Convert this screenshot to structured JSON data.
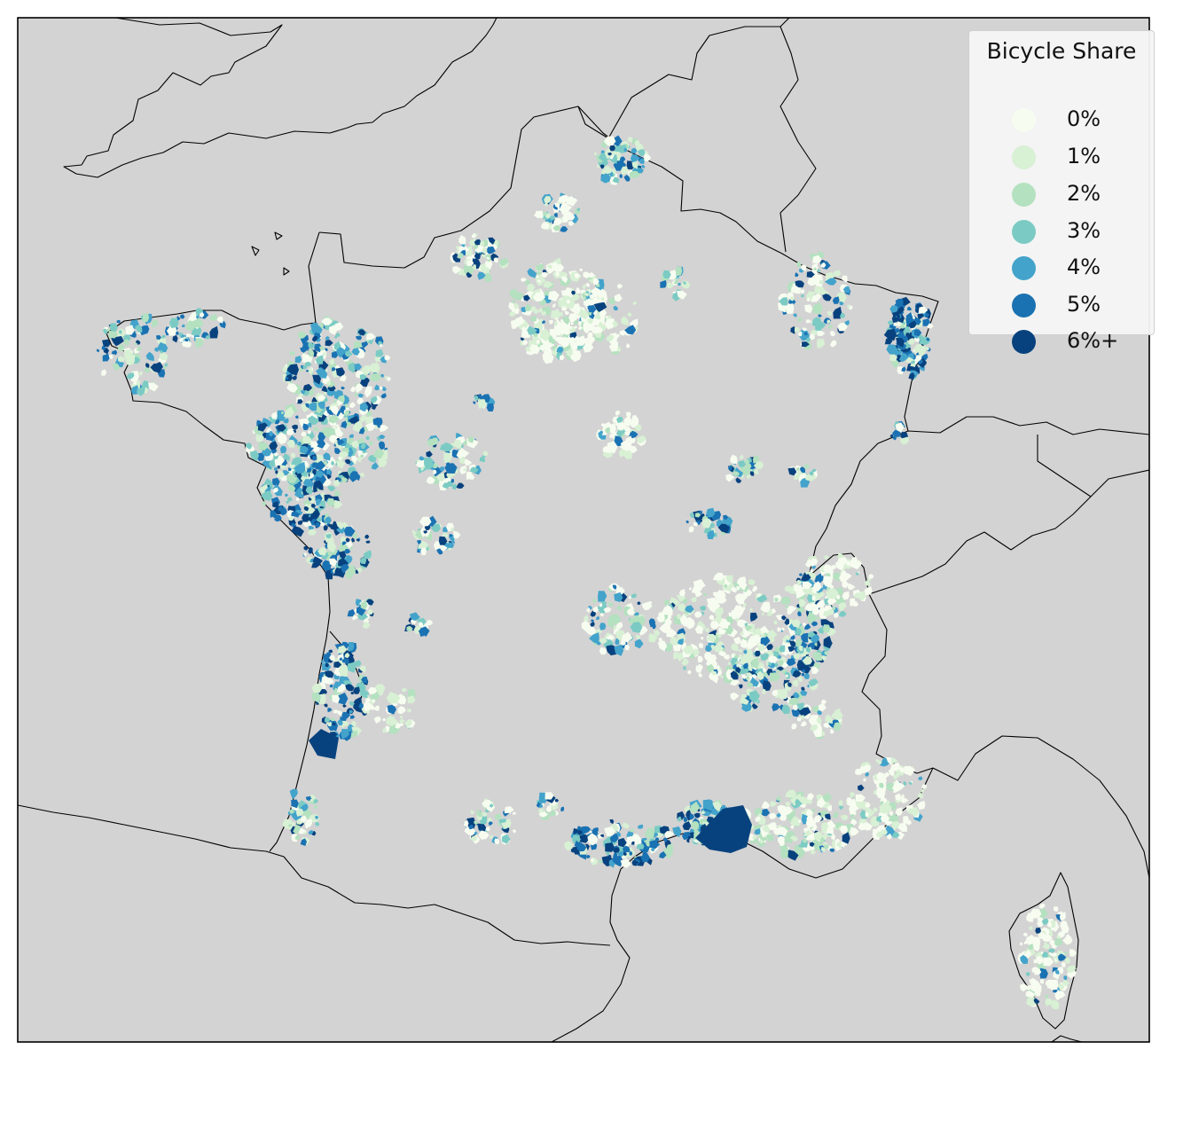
{
  "legend": {
    "title": "Bicycle Share",
    "classes": [
      {
        "label": "0%",
        "color": "#f7fcf0"
      },
      {
        "label": "1%",
        "color": "#d8f0d4"
      },
      {
        "label": "2%",
        "color": "#b4e1bf"
      },
      {
        "label": "3%",
        "color": "#7bcbc4"
      },
      {
        "label": "4%",
        "color": "#43a3cb"
      },
      {
        "label": "5%",
        "color": "#1a72b2"
      },
      {
        "label": "6%+",
        "color": "#08427e"
      }
    ]
  },
  "colors": {
    "background": "#d3d3d3",
    "coastline": "#000000",
    "frame": "#000000"
  }
}
